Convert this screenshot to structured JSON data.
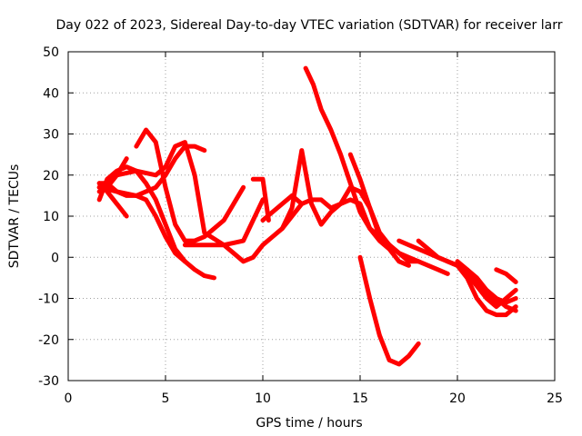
{
  "chart_data": {
    "type": "line",
    "title": "Day 022 of 2023, Sidereal Day-to-day VTEC variation (SDTVAR) for receiver larr",
    "xlabel": "GPS time / hours",
    "ylabel": "SDTVAR / TECUs",
    "xlim": [
      0,
      25
    ],
    "ylim": [
      -30,
      50
    ],
    "xticks": [
      0,
      5,
      10,
      15,
      20,
      25
    ],
    "yticks": [
      -30,
      -20,
      -10,
      0,
      10,
      20,
      30,
      40,
      50
    ],
    "grid": true,
    "series_color": "#ff0000",
    "series": [
      {
        "x": [
          1.6,
          2.0,
          2.5,
          3.0,
          3.5,
          4.0,
          4.5,
          5.0,
          5.5,
          6.0,
          6.5,
          7.0,
          7.5
        ],
        "y": [
          14,
          19,
          21,
          22,
          21,
          18,
          14,
          8,
          2,
          -1,
          -3,
          -4.5,
          -5
        ]
      },
      {
        "x": [
          1.6,
          2.0,
          2.5,
          3.0
        ],
        "y": [
          16,
          17,
          20,
          24
        ]
      },
      {
        "x": [
          1.6,
          2.0,
          2.5,
          3.0
        ],
        "y": [
          18,
          16,
          13,
          10
        ]
      },
      {
        "x": [
          1.6,
          2.0,
          2.5,
          3.0,
          3.5,
          4.0,
          4.5,
          5.0,
          5.5,
          6.0
        ],
        "y": [
          18,
          18,
          16,
          15,
          15,
          14,
          10,
          5,
          1,
          -1
        ]
      },
      {
        "x": [
          1.6,
          2.5,
          3.5,
          4.5,
          5.0,
          5.5,
          6.0,
          6.5,
          7.0
        ],
        "y": [
          17,
          16,
          15,
          17,
          20,
          24,
          27,
          27,
          26
        ]
      },
      {
        "x": [
          3.5,
          4.0,
          4.5,
          5.0,
          5.5,
          6.0,
          6.5,
          7.0,
          8.0,
          9.0
        ],
        "y": [
          27,
          31,
          28,
          17,
          8,
          4,
          4,
          5,
          9,
          17
        ]
      },
      {
        "x": [
          1.6,
          2.5,
          3.5,
          4.5,
          5.0,
          5.5,
          6.0,
          6.5,
          7.0,
          8.0,
          9.0,
          10.0
        ],
        "y": [
          17,
          20,
          21,
          20,
          22,
          27,
          28,
          20,
          6,
          3,
          4,
          14
        ]
      },
      {
        "x": [
          6.0,
          7.0,
          8.0,
          8.5,
          9.0,
          9.5,
          10.0,
          10.5,
          11.0,
          12.0
        ],
        "y": [
          3,
          3,
          3,
          1,
          -1,
          0,
          3,
          5,
          7,
          13
        ]
      },
      {
        "x": [
          9.5,
          10.0,
          10.3
        ],
        "y": [
          19,
          19,
          9
        ]
      },
      {
        "x": [
          10.0,
          11.0,
          11.5,
          12.0,
          12.5,
          13.0,
          13.5,
          14.0,
          14.5,
          15.0,
          15.5,
          16.0,
          16.5,
          17.0,
          17.5
        ],
        "y": [
          9,
          13,
          15,
          13,
          14,
          14,
          12,
          13,
          14,
          13,
          7,
          4,
          2,
          -1,
          -2
        ]
      },
      {
        "x": [
          11.0,
          11.5,
          12.0,
          12.5,
          13.0,
          13.5,
          14.0,
          14.5,
          15.0,
          15.5,
          16.0,
          16.5
        ],
        "y": [
          7,
          12,
          26,
          13,
          8,
          11,
          13,
          17,
          16,
          12,
          5,
          3
        ]
      },
      {
        "x": [
          12.2,
          12.6,
          13.0,
          13.5,
          14.0,
          14.5,
          15.0,
          15.5,
          16.0,
          16.5,
          17.0,
          17.5,
          18.0
        ],
        "y": [
          46,
          42,
          36,
          31,
          25,
          18,
          11,
          7,
          5,
          3,
          1,
          0,
          -1
        ]
      },
      {
        "x": [
          15.0,
          15.5,
          16.0,
          16.5,
          17.0,
          17.5,
          18.0
        ],
        "y": [
          0,
          -10,
          -19,
          -25,
          -26,
          -24,
          -21
        ]
      },
      {
        "x": [
          14.5,
          15.0,
          15.5,
          16.0,
          16.5,
          17.0,
          17.5,
          18.0,
          18.5,
          19.0,
          19.5
        ],
        "y": [
          25,
          19,
          12,
          6,
          3,
          1,
          -1,
          -1,
          -2,
          -3,
          -4
        ]
      },
      {
        "x": [
          17.0,
          17.5,
          18.0,
          18.5,
          19.0,
          19.5,
          20.0,
          20.5,
          21.0,
          21.5,
          22.0,
          22.5
        ],
        "y": [
          4,
          3,
          2,
          1,
          0,
          -1,
          -2,
          -4,
          -6,
          -8,
          -10,
          -11
        ]
      },
      {
        "x": [
          18.0,
          18.5,
          19.0,
          19.5,
          20.0,
          20.5,
          21.0,
          21.5,
          22.0,
          22.5,
          23.0
        ],
        "y": [
          4,
          2,
          0,
          -1,
          -2,
          -4,
          -7,
          -10,
          -12,
          -10,
          -8
        ]
      },
      {
        "x": [
          19.5,
          20.0,
          20.5,
          21.0,
          21.5,
          22.0,
          22.5,
          23.0
        ],
        "y": [
          -1,
          -2,
          -5,
          -10,
          -13,
          -14,
          -14,
          -12
        ]
      },
      {
        "x": [
          20.0,
          20.5,
          21.0,
          21.5,
          22.0,
          22.5,
          23.0
        ],
        "y": [
          -1,
          -3,
          -5,
          -8,
          -10,
          -12,
          -13
        ]
      },
      {
        "x": [
          20.5,
          21.0,
          21.5,
          22.0,
          22.5,
          23.0
        ],
        "y": [
          -3,
          -6,
          -9,
          -11,
          -11,
          -10
        ]
      },
      {
        "x": [
          22.0,
          22.5,
          23.0
        ],
        "y": [
          -3,
          -4,
          -6
        ]
      }
    ]
  }
}
